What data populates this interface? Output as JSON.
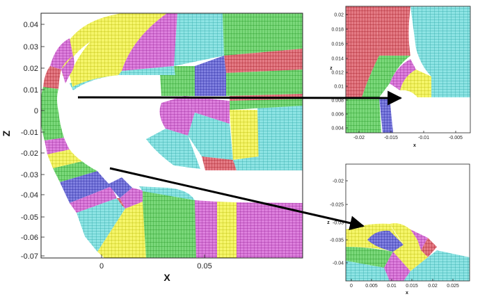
{
  "main_plot": {
    "xlabel": "X",
    "ylabel": "Z",
    "x_ticks": [
      "0",
      "0.05"
    ],
    "y_ticks": [
      "0.04",
      "0.03",
      "0.02",
      "0.01",
      "0",
      "-0.01",
      "-0.02",
      "-0.03",
      "-0.04",
      "-0.05",
      "-0.06",
      "-0.07"
    ]
  },
  "inset_top": {
    "xlabel": "x",
    "ylabel": "z",
    "x_ticks": [
      "-0.02",
      "-0.015",
      "-0.01",
      "-0.005"
    ],
    "y_ticks": [
      "0.02",
      "0.018",
      "0.016",
      "0.014",
      "0.012",
      "0.01",
      "0.008",
      "0.006",
      "0.004"
    ]
  },
  "inset_bottom": {
    "xlabel": "x",
    "ylabel": "z",
    "x_ticks": [
      "0",
      "0.005",
      "0.01",
      "0.015",
      "0.02",
      "0.025"
    ],
    "y_ticks": [
      "-0.02",
      "-0.025",
      "-0.03",
      "-0.035",
      "-0.04"
    ]
  },
  "colors": {
    "block_yellow": "#f2f232",
    "block_cyan": "#5cd6d6",
    "block_green": "#3cc83c",
    "block_magenta": "#c83cc8",
    "block_blue": "#3c3cc8",
    "block_red": "#d22c3c",
    "arrow": "#000000"
  }
}
